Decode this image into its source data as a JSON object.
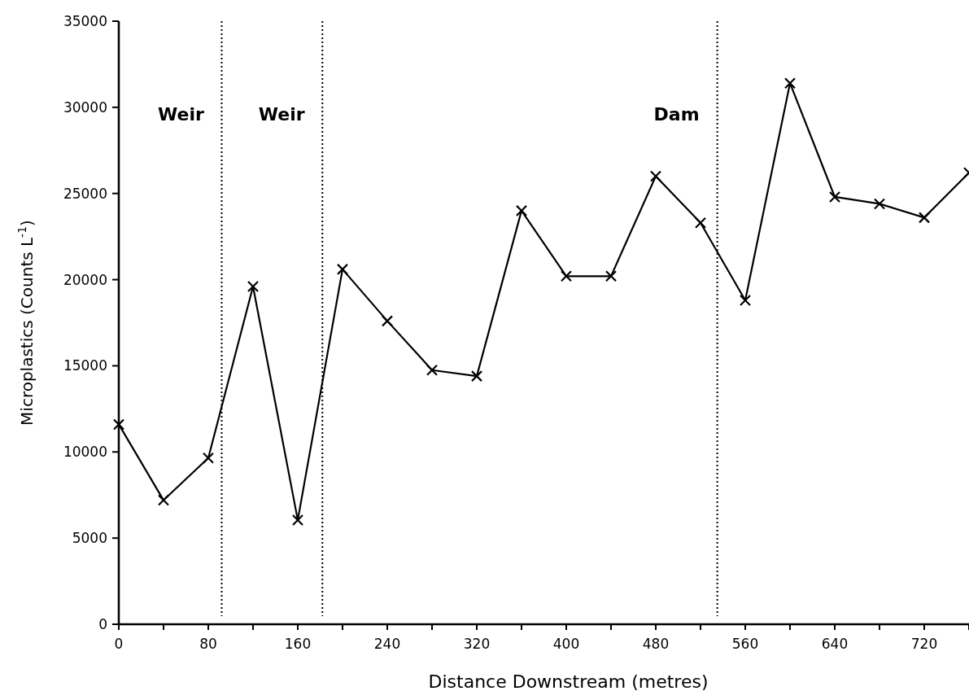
{
  "chart_data": {
    "type": "line",
    "xlabel": "Distance Downstream (metres)",
    "ylabel": "Microplastics (Counts L$^{-1}$)",
    "x": [
      0,
      40,
      80,
      120,
      160,
      200,
      240,
      280,
      320,
      360,
      400,
      440,
      480,
      520,
      560,
      600,
      640,
      680,
      720,
      760
    ],
    "series": [
      {
        "color": "#000000",
        "values": [
          11600,
          7200,
          9650,
          19600,
          6050,
          20600,
          17600,
          14750,
          14400,
          24000,
          20200,
          20200,
          26000,
          23300,
          18800,
          31400,
          24800,
          24400,
          23600,
          26200
        ]
      }
    ],
    "xlim": [
      0,
      760
    ],
    "xticks": [
      0,
      {
        "value": 40,
        "label": null
      },
      80,
      {
        "value": 120,
        "label": null
      },
      160,
      {
        "value": 200,
        "label": null
      },
      240,
      {
        "value": 280,
        "label": null
      },
      320,
      {
        "value": 360,
        "label": null
      },
      400,
      {
        "value": 440,
        "label": null
      },
      480,
      {
        "value": 520,
        "label": null
      },
      560,
      {
        "value": 600,
        "label": null
      },
      640,
      {
        "value": 680,
        "label": null
      },
      720,
      {
        "value": 760,
        "label": null
      }
    ],
    "ylim": [
      0,
      35000
    ],
    "yticks": [
      0,
      5000,
      10000,
      15000,
      20000,
      25000,
      30000,
      35000
    ],
    "ref_lines": [
      {
        "axis": "x",
        "value": 92,
        "label": "Weir",
        "line_style": "dotted",
        "color": "#000000"
      },
      {
        "axis": "x",
        "value": 182,
        "label": "Weir",
        "line_style": "dotted",
        "color": "#000000"
      },
      {
        "axis": "x",
        "value": 535,
        "label": "Dam",
        "line_style": "dotted",
        "color": "#000000"
      }
    ],
    "marker": "cross",
    "line_style": "solid",
    "grid": false
  }
}
